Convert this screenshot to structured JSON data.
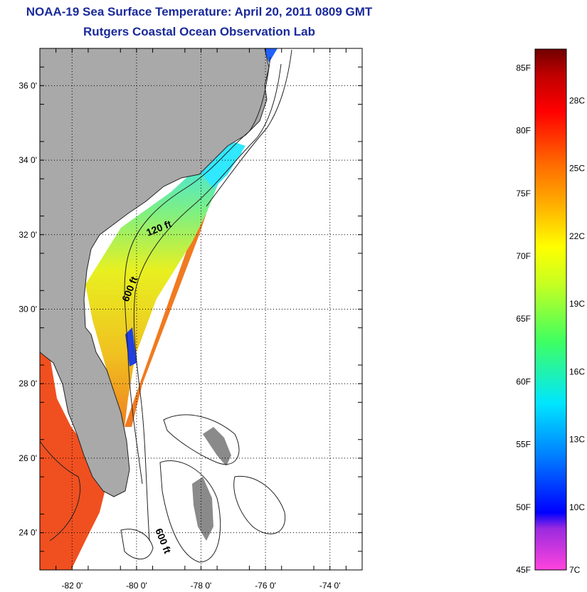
{
  "title": "NOAA-19 Sea Surface Temperature:  April 20, 2011 0809 GMT",
  "subtitle": "Rutgers Coastal Ocean Observation Lab",
  "map": {
    "lon_range": [
      -83,
      -73
    ],
    "lat_range": [
      23,
      37
    ],
    "lat_ticks": [
      {
        "value": 24,
        "label": "24 0'"
      },
      {
        "value": 26,
        "label": "26 0'"
      },
      {
        "value": 28,
        "label": "28 0'"
      },
      {
        "value": 30,
        "label": "30 0'"
      },
      {
        "value": 32,
        "label": "32 0'"
      },
      {
        "value": 34,
        "label": "34 0'"
      },
      {
        "value": 36,
        "label": "36 0'"
      }
    ],
    "lon_ticks": [
      {
        "value": -82,
        "label": "-82 0'"
      },
      {
        "value": -80,
        "label": "-80 0'"
      },
      {
        "value": -78,
        "label": "-78 0'"
      },
      {
        "value": -76,
        "label": "-76 0'"
      },
      {
        "value": -74,
        "label": "-74 0'"
      }
    ],
    "contour_labels": {
      "c120": "120 ft",
      "c600a": "600 ft",
      "c600b": "600 ft"
    },
    "land_color": "#a9a9a9",
    "no_data_color": "#ffffff"
  },
  "colorbar": {
    "f_labels": [
      "85F",
      "80F",
      "75F",
      "70F",
      "65F",
      "60F",
      "55F",
      "50F",
      "45F"
    ],
    "c_labels": [
      "28C",
      "25C",
      "22C",
      "19C",
      "16C",
      "13C",
      "10C",
      "7C"
    ],
    "colors": [
      "#ff44dd",
      "#9a2adf",
      "#0000ff",
      "#0080ff",
      "#00e6ff",
      "#40ff60",
      "#c8ff20",
      "#ffff00",
      "#ffb000",
      "#ff6a00",
      "#ff0000",
      "#c00000",
      "#700000"
    ]
  }
}
